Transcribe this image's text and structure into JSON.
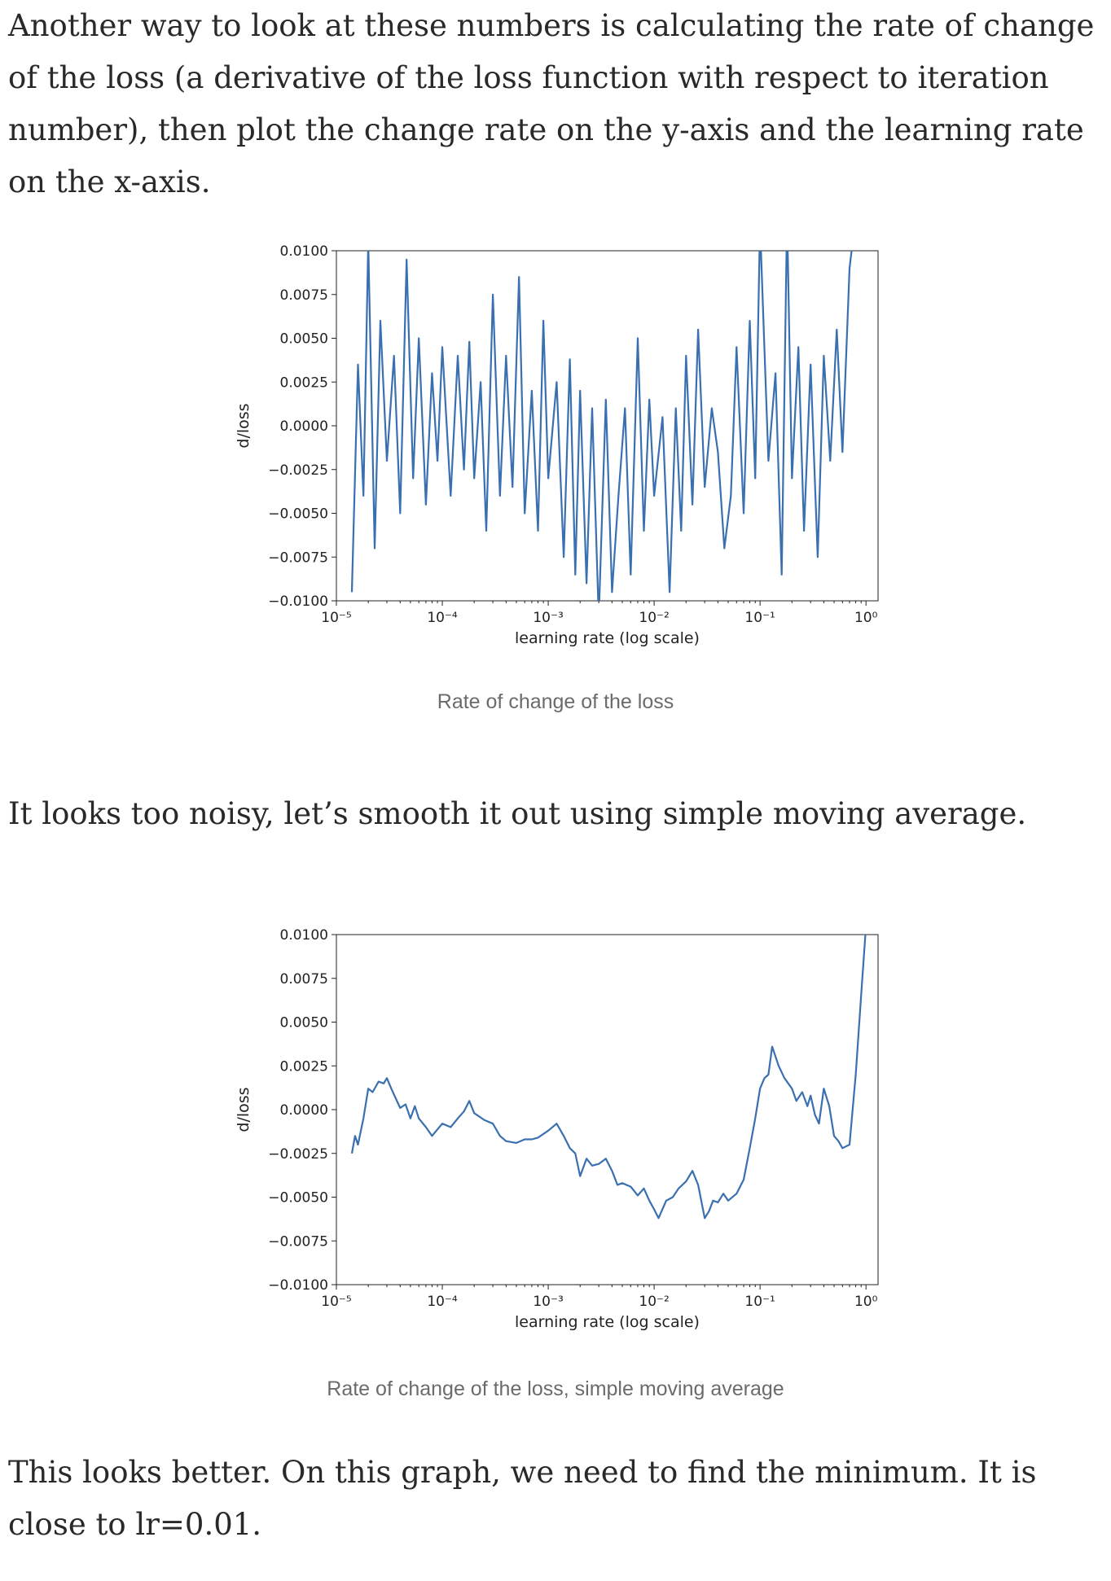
{
  "paragraphs": {
    "p1": "Another way to look at these numbers is calculating the rate of change of the loss (a derivative of the loss function with respect to iteration number), then plot the change rate on the y-axis and the learning rate on the x-axis.",
    "p2": "It looks too noisy, let’s smooth it out using simple moving average.",
    "p3": "This looks better. On this graph, we need to find the minimum. It is close to lr=0.01."
  },
  "captions": {
    "fig1": "Rate of change of the loss",
    "fig2": "Rate of change of the loss, simple moving average"
  },
  "colors": {
    "line": "#3a6fb0",
    "text": "#292929",
    "caption": "#6b6b6b"
  },
  "chart_data": [
    {
      "type": "line",
      "xlabel": "learning rate (log scale)",
      "ylabel": "d/loss",
      "x_scale": "log",
      "xlim": [
        1e-05,
        1.3
      ],
      "ylim": [
        -0.01,
        0.01
      ],
      "yticks": [
        "0.0100",
        "0.0075",
        "0.0050",
        "0.0025",
        "0.0000",
        "−0.0025",
        "−0.0050",
        "−0.0075",
        "−0.0100"
      ],
      "ytick_values": [
        0.01,
        0.0075,
        0.005,
        0.0025,
        0,
        -0.0025,
        -0.005,
        -0.0075,
        -0.01
      ],
      "xticks": [
        {
          "label": "10⁻⁵",
          "value": 1e-05
        },
        {
          "label": "10⁻⁴",
          "value": 0.0001
        },
        {
          "label": "10⁻³",
          "value": 0.001
        },
        {
          "label": "10⁻²",
          "value": 0.01
        },
        {
          "label": "10⁻¹",
          "value": 0.1
        },
        {
          "label": "10⁰",
          "value": 1
        }
      ],
      "grid": false,
      "series": [
        {
          "x": [
            1.4e-05,
            1.6e-05,
            1.8e-05,
            2e-05,
            2.3e-05,
            2.6e-05,
            3e-05,
            3.5e-05,
            4e-05,
            4.6e-05,
            5.3e-05,
            6e-05,
            7e-05,
            8e-05,
            9e-05,
            0.0001,
            0.00012,
            0.00014,
            0.00016,
            0.00018,
            0.0002,
            0.00023,
            0.00026,
            0.0003,
            0.00035,
            0.0004,
            0.00046,
            0.00053,
            0.0006,
            0.0007,
            0.0008,
            0.0009,
            0.001,
            0.0012,
            0.0014,
            0.0016,
            0.0018,
            0.002,
            0.0023,
            0.0026,
            0.003,
            0.0035,
            0.004,
            0.0046,
            0.0053,
            0.006,
            0.007,
            0.008,
            0.009,
            0.01,
            0.012,
            0.014,
            0.016,
            0.018,
            0.02,
            0.023,
            0.026,
            0.03,
            0.035,
            0.04,
            0.046,
            0.053,
            0.06,
            0.07,
            0.08,
            0.09,
            0.1,
            0.12,
            0.14,
            0.16,
            0.18,
            0.2,
            0.23,
            0.26,
            0.3,
            0.35,
            0.4,
            0.46,
            0.53,
            0.6,
            0.7,
            0.8,
            0.9,
            1.0
          ],
          "y": [
            -0.0095,
            0.0035,
            -0.004,
            0.0105,
            -0.007,
            0.006,
            -0.002,
            0.004,
            -0.005,
            0.0095,
            -0.003,
            0.005,
            -0.0045,
            0.003,
            -0.002,
            0.0045,
            -0.004,
            0.004,
            -0.0025,
            0.0048,
            -0.003,
            0.0025,
            -0.006,
            0.0075,
            -0.004,
            0.004,
            -0.0035,
            0.0085,
            -0.005,
            0.002,
            -0.006,
            0.006,
            -0.003,
            0.0025,
            -0.0075,
            0.0038,
            -0.0085,
            0.002,
            -0.009,
            0.001,
            -0.011,
            0.0015,
            -0.0095,
            -0.004,
            0.001,
            -0.0085,
            0.005,
            -0.006,
            0.0015,
            -0.004,
            0.0005,
            -0.0095,
            0.001,
            -0.006,
            0.004,
            -0.0045,
            0.0055,
            -0.0035,
            0.001,
            -0.0015,
            -0.007,
            -0.004,
            0.0045,
            -0.005,
            0.006,
            -0.003,
            0.0115,
            -0.002,
            0.003,
            -0.0085,
            0.012,
            -0.003,
            0.0045,
            -0.006,
            0.0035,
            -0.0075,
            0.004,
            -0.002,
            0.0055,
            -0.0015,
            0.009,
            0.012,
            0.011,
            0.0105
          ]
        }
      ]
    },
    {
      "type": "line",
      "xlabel": "learning rate (log scale)",
      "ylabel": "d/loss",
      "x_scale": "log",
      "xlim": [
        1e-05,
        1.3
      ],
      "ylim": [
        -0.01,
        0.01
      ],
      "yticks": [
        "0.0100",
        "0.0075",
        "0.0050",
        "0.0025",
        "0.0000",
        "−0.0025",
        "−0.0050",
        "−0.0075",
        "−0.0100"
      ],
      "ytick_values": [
        0.01,
        0.0075,
        0.005,
        0.0025,
        0,
        -0.0025,
        -0.005,
        -0.0075,
        -0.01
      ],
      "xticks": [
        {
          "label": "10⁻⁵",
          "value": 1e-05
        },
        {
          "label": "10⁻⁴",
          "value": 0.0001
        },
        {
          "label": "10⁻³",
          "value": 0.001
        },
        {
          "label": "10⁻²",
          "value": 0.01
        },
        {
          "label": "10⁻¹",
          "value": 0.1
        },
        {
          "label": "10⁰",
          "value": 1
        }
      ],
      "grid": false,
      "series": [
        {
          "x": [
            1.4e-05,
            1.5e-05,
            1.6e-05,
            1.8e-05,
            2e-05,
            2.2e-05,
            2.5e-05,
            2.8e-05,
            3e-05,
            3.3e-05,
            3.6e-05,
            4e-05,
            4.5e-05,
            5e-05,
            5.5e-05,
            6e-05,
            7e-05,
            8e-05,
            0.0001,
            0.00012,
            0.00014,
            0.00016,
            0.00018,
            0.0002,
            0.00025,
            0.0003,
            0.00035,
            0.0004,
            0.0005,
            0.0006,
            0.0007,
            0.0008,
            0.001,
            0.0012,
            0.0014,
            0.0016,
            0.0018,
            0.002,
            0.0023,
            0.0026,
            0.003,
            0.0035,
            0.004,
            0.0045,
            0.005,
            0.006,
            0.007,
            0.008,
            0.009,
            0.01,
            0.011,
            0.013,
            0.015,
            0.017,
            0.02,
            0.023,
            0.026,
            0.03,
            0.033,
            0.036,
            0.04,
            0.045,
            0.05,
            0.06,
            0.07,
            0.08,
            0.09,
            0.1,
            0.11,
            0.12,
            0.13,
            0.15,
            0.17,
            0.2,
            0.22,
            0.25,
            0.28,
            0.3,
            0.33,
            0.36,
            0.4,
            0.45,
            0.5,
            0.55,
            0.6,
            0.7,
            0.8,
            0.9,
            1.0
          ],
          "y": [
            -0.0025,
            -0.0015,
            -0.002,
            -0.0005,
            0.0012,
            0.001,
            0.0016,
            0.0015,
            0.0018,
            0.0012,
            0.0007,
            0.0001,
            0.0003,
            -0.0005,
            0.0002,
            -0.0005,
            -0.001,
            -0.0015,
            -0.0008,
            -0.001,
            -0.0005,
            -0.0001,
            0.0005,
            -0.0002,
            -0.0006,
            -0.0008,
            -0.0015,
            -0.0018,
            -0.0019,
            -0.0017,
            -0.0017,
            -0.0016,
            -0.0012,
            -0.0008,
            -0.0015,
            -0.0022,
            -0.0025,
            -0.0038,
            -0.0028,
            -0.0032,
            -0.0031,
            -0.0028,
            -0.0035,
            -0.0043,
            -0.0042,
            -0.0044,
            -0.0049,
            -0.0045,
            -0.0052,
            -0.0057,
            -0.0062,
            -0.0052,
            -0.005,
            -0.0045,
            -0.0041,
            -0.0035,
            -0.0043,
            -0.0062,
            -0.0058,
            -0.0052,
            -0.0053,
            -0.0048,
            -0.0052,
            -0.0048,
            -0.004,
            -0.0022,
            -0.0005,
            0.0012,
            0.0018,
            0.002,
            0.0036,
            0.0025,
            0.0018,
            0.0012,
            0.0005,
            0.001,
            0.0002,
            0.0008,
            -0.0003,
            -0.0008,
            0.0012,
            0.0002,
            -0.0015,
            -0.0018,
            -0.0022,
            -0.002,
            0.002,
            0.0065,
            0.0105
          ]
        }
      ]
    }
  ]
}
